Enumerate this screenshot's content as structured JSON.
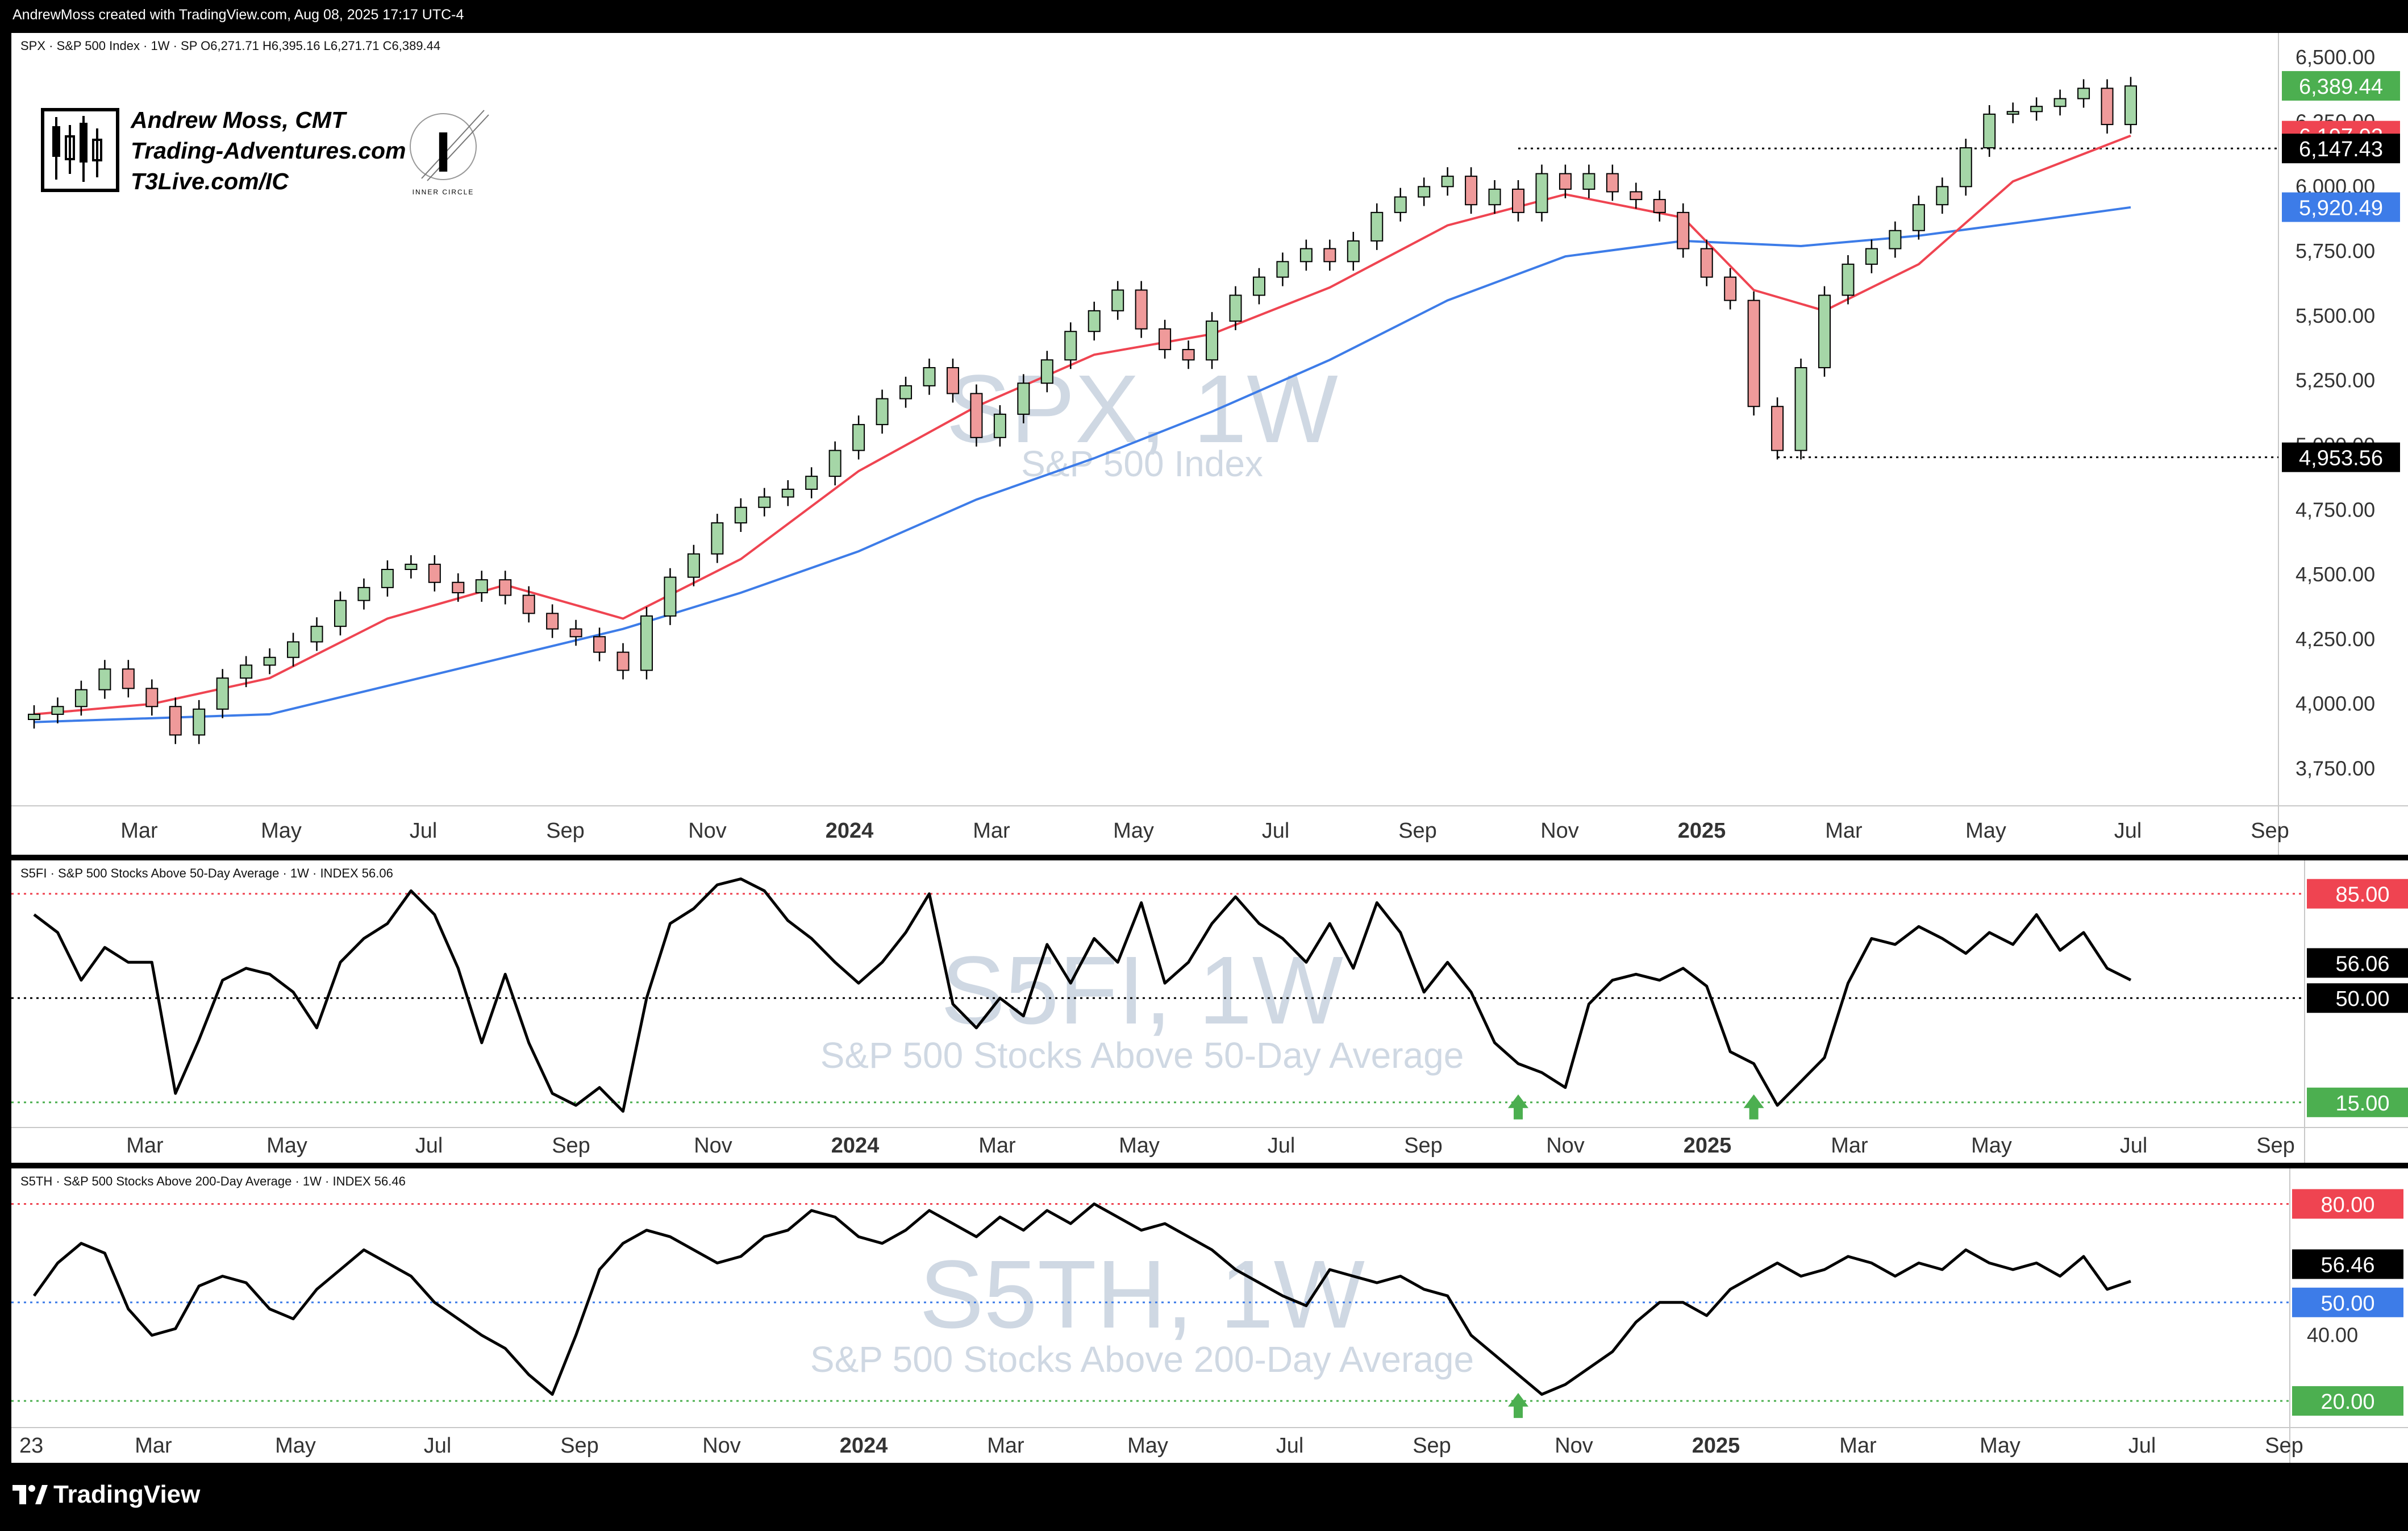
{
  "header": {
    "attribution": "AndrewMoss created with TradingView.com, Aug 08, 2025 17:17 UTC-4"
  },
  "branding": {
    "author_lines": [
      "Andrew Moss, CMT",
      "Trading-Adventures.com",
      "T3Live.com/IC"
    ],
    "inner_circle": "INNER CIRCLE",
    "footer_logo": "TradingView"
  },
  "colors": {
    "bull": "#a5d6a7",
    "bear": "#ef9a9a",
    "candle_edge": "#000000",
    "ema_fast": "#ef4451",
    "ema_slow": "#3d7ce8",
    "green_tag": "#4caf50",
    "red_tag": "#ef4451",
    "blue_tag": "#2962ff"
  },
  "chart_data": [
    {
      "type": "candlestick",
      "legend": "SPX · S&P 500 Index · 1W · SP",
      "ohlc_readout": {
        "O": "O6,271.71",
        "H": "H6,395.16",
        "L": "L6,271.71",
        "C": "C6,389.44"
      },
      "watermark_title": "SPX, 1W",
      "watermark_subtitle": "S&P 500 Index",
      "ylim": [
        3650,
        6550
      ],
      "yticks": [
        "3,750.00",
        "4,000.00",
        "4,250.00",
        "4,500.00",
        "4,750.00",
        "5,000.00",
        "5,250.00",
        "5,500.00",
        "5,750.00",
        "6,000.00",
        "6,250.00",
        "6,500.00"
      ],
      "x_labels": [
        "Mar",
        "May",
        "Jul",
        "Sep",
        "Nov",
        "2024",
        "Mar",
        "May",
        "Jul",
        "Sep",
        "Nov",
        "2025",
        "Mar",
        "May",
        "Jul",
        "Sep"
      ],
      "ohlc_close_points": [
        [
          0,
          3960
        ],
        [
          2,
          3990
        ],
        [
          4,
          4055
        ],
        [
          6,
          4135
        ],
        [
          8,
          4060
        ],
        [
          10,
          3990
        ],
        [
          12,
          3880
        ],
        [
          14,
          3980
        ],
        [
          16,
          4100
        ],
        [
          18,
          4150
        ],
        [
          20,
          4180
        ],
        [
          22,
          4240
        ],
        [
          24,
          4300
        ],
        [
          26,
          4400
        ],
        [
          28,
          4450
        ],
        [
          30,
          4520
        ],
        [
          32,
          4540
        ],
        [
          34,
          4470
        ],
        [
          36,
          4430
        ],
        [
          38,
          4480
        ],
        [
          40,
          4420
        ],
        [
          42,
          4350
        ],
        [
          44,
          4290
        ],
        [
          46,
          4260
        ],
        [
          48,
          4200
        ],
        [
          50,
          4130
        ],
        [
          52,
          4340
        ],
        [
          54,
          4490
        ],
        [
          56,
          4580
        ],
        [
          58,
          4700
        ],
        [
          60,
          4760
        ],
        [
          62,
          4800
        ],
        [
          64,
          4830
        ],
        [
          66,
          4880
        ],
        [
          68,
          4980
        ],
        [
          70,
          5080
        ],
        [
          72,
          5180
        ],
        [
          74,
          5230
        ],
        [
          76,
          5300
        ],
        [
          78,
          5200
        ],
        [
          80,
          5030
        ],
        [
          82,
          5120
        ],
        [
          84,
          5240
        ],
        [
          86,
          5330
        ],
        [
          88,
          5440
        ],
        [
          90,
          5520
        ],
        [
          92,
          5600
        ],
        [
          94,
          5450
        ],
        [
          96,
          5370
        ],
        [
          98,
          5330
        ],
        [
          100,
          5480
        ],
        [
          102,
          5580
        ],
        [
          104,
          5650
        ],
        [
          106,
          5710
        ],
        [
          108,
          5760
        ],
        [
          110,
          5710
        ],
        [
          112,
          5790
        ],
        [
          114,
          5900
        ],
        [
          116,
          5960
        ],
        [
          118,
          6000
        ],
        [
          120,
          6040
        ],
        [
          122,
          5930
        ],
        [
          124,
          5990
        ],
        [
          126,
          5900
        ],
        [
          128,
          6050
        ],
        [
          130,
          5990
        ],
        [
          132,
          6050
        ],
        [
          134,
          5980
        ],
        [
          136,
          5950
        ],
        [
          138,
          5900
        ],
        [
          140,
          5760
        ],
        [
          142,
          5650
        ],
        [
          144,
          5560
        ],
        [
          146,
          5150
        ],
        [
          148,
          4980
        ],
        [
          150,
          5300
        ],
        [
          152,
          5580
        ],
        [
          154,
          5700
        ],
        [
          156,
          5760
        ],
        [
          158,
          5830
        ],
        [
          160,
          5930
        ],
        [
          162,
          6000
        ],
        [
          164,
          6150
        ],
        [
          166,
          6280
        ],
        [
          168,
          6290
        ],
        [
          170,
          6310
        ],
        [
          172,
          6340
        ],
        [
          174,
          6380
        ],
        [
          176,
          6240
        ],
        [
          178,
          6389
        ]
      ],
      "ema_fast_points": [
        [
          0,
          3960
        ],
        [
          10,
          4000
        ],
        [
          20,
          4100
        ],
        [
          30,
          4330
        ],
        [
          40,
          4460
        ],
        [
          50,
          4330
        ],
        [
          60,
          4560
        ],
        [
          70,
          4900
        ],
        [
          80,
          5150
        ],
        [
          90,
          5350
        ],
        [
          100,
          5430
        ],
        [
          110,
          5610
        ],
        [
          120,
          5850
        ],
        [
          130,
          5970
        ],
        [
          140,
          5880
        ],
        [
          146,
          5600
        ],
        [
          152,
          5520
        ],
        [
          160,
          5700
        ],
        [
          168,
          6020
        ],
        [
          178,
          6197
        ]
      ],
      "ema_slow_points": [
        [
          0,
          3930
        ],
        [
          20,
          3960
        ],
        [
          40,
          4180
        ],
        [
          50,
          4290
        ],
        [
          60,
          4430
        ],
        [
          70,
          4590
        ],
        [
          80,
          4790
        ],
        [
          90,
          4950
        ],
        [
          100,
          5130
        ],
        [
          110,
          5330
        ],
        [
          120,
          5560
        ],
        [
          130,
          5730
        ],
        [
          140,
          5790
        ],
        [
          150,
          5770
        ],
        [
          160,
          5810
        ],
        [
          170,
          5870
        ],
        [
          178,
          5920
        ]
      ],
      "horizontal_levels": [
        {
          "label": "6,147.43",
          "value": 6147.43
        },
        {
          "label": "4,953.56",
          "value": 4953.56
        }
      ],
      "price_tags": [
        {
          "label": "6,389.44",
          "value": 6389.44,
          "color": "#4caf50"
        },
        {
          "label": "6,197.02",
          "value": 6197.02,
          "color": "#ef4451"
        },
        {
          "label": "6,147.43",
          "value": 6147.43,
          "color": "#000000"
        },
        {
          "label": "5,920.49",
          "value": 5920.49,
          "color": "#3d7ce8"
        },
        {
          "label": "4,953.56",
          "value": 4953.56,
          "color": "#000000"
        }
      ]
    },
    {
      "type": "line",
      "legend": "S5FI · S&P 500 Stocks Above 50-Day Average · 1W · INDEX",
      "legend_value": "56.06",
      "watermark_title": "S5FI, 1W",
      "watermark_subtitle": "S&P 500 Stocks Above 50-Day Average",
      "ylim": [
        10,
        92
      ],
      "series_points": [
        [
          0,
          78
        ],
        [
          2,
          72
        ],
        [
          4,
          56
        ],
        [
          6,
          67
        ],
        [
          8,
          62
        ],
        [
          10,
          62
        ],
        [
          12,
          18
        ],
        [
          14,
          36
        ],
        [
          16,
          56
        ],
        [
          18,
          60
        ],
        [
          20,
          58
        ],
        [
          22,
          52
        ],
        [
          24,
          40
        ],
        [
          26,
          62
        ],
        [
          28,
          70
        ],
        [
          30,
          75
        ],
        [
          32,
          86
        ],
        [
          34,
          78
        ],
        [
          36,
          60
        ],
        [
          38,
          35
        ],
        [
          40,
          58
        ],
        [
          42,
          35
        ],
        [
          44,
          18
        ],
        [
          46,
          14
        ],
        [
          48,
          20
        ],
        [
          50,
          12
        ],
        [
          52,
          50
        ],
        [
          54,
          75
        ],
        [
          56,
          80
        ],
        [
          58,
          88
        ],
        [
          60,
          90
        ],
        [
          62,
          86
        ],
        [
          64,
          76
        ],
        [
          66,
          70
        ],
        [
          68,
          62
        ],
        [
          70,
          55
        ],
        [
          72,
          62
        ],
        [
          74,
          72
        ],
        [
          76,
          85
        ],
        [
          78,
          48
        ],
        [
          80,
          40
        ],
        [
          82,
          50
        ],
        [
          84,
          44
        ],
        [
          86,
          68
        ],
        [
          88,
          55
        ],
        [
          90,
          70
        ],
        [
          92,
          62
        ],
        [
          94,
          82
        ],
        [
          96,
          55
        ],
        [
          98,
          62
        ],
        [
          100,
          75
        ],
        [
          102,
          84
        ],
        [
          104,
          75
        ],
        [
          106,
          70
        ],
        [
          108,
          62
        ],
        [
          110,
          75
        ],
        [
          112,
          60
        ],
        [
          114,
          82
        ],
        [
          116,
          72
        ],
        [
          118,
          52
        ],
        [
          120,
          62
        ],
        [
          122,
          52
        ],
        [
          124,
          35
        ],
        [
          126,
          28
        ],
        [
          128,
          25
        ],
        [
          130,
          20
        ],
        [
          132,
          48
        ],
        [
          134,
          56
        ],
        [
          136,
          58
        ],
        [
          138,
          56
        ],
        [
          140,
          60
        ],
        [
          142,
          54
        ],
        [
          144,
          32
        ],
        [
          146,
          28
        ],
        [
          148,
          14
        ],
        [
          150,
          22
        ],
        [
          152,
          30
        ],
        [
          154,
          55
        ],
        [
          156,
          70
        ],
        [
          158,
          68
        ],
        [
          160,
          74
        ],
        [
          162,
          70
        ],
        [
          164,
          65
        ],
        [
          166,
          72
        ],
        [
          168,
          68
        ],
        [
          170,
          78
        ],
        [
          172,
          66
        ],
        [
          174,
          72
        ],
        [
          176,
          60
        ],
        [
          178,
          56.06
        ]
      ],
      "levels": [
        {
          "label": "85.00",
          "value": 85,
          "color": "#ef4451",
          "style": "dotted"
        },
        {
          "label": "50.00",
          "value": 50,
          "color": "#000000",
          "style": "dotted"
        },
        {
          "label": "15.00",
          "value": 15,
          "color": "#4caf50",
          "style": "dotted"
        }
      ],
      "value_tag": {
        "label": "56.06",
        "value": 56.06
      },
      "signal_arrows": [
        126,
        146
      ],
      "x_labels": [
        "Mar",
        "May",
        "Jul",
        "Sep",
        "Nov",
        "2024",
        "Mar",
        "May",
        "Jul",
        "Sep",
        "Nov",
        "2025",
        "Mar",
        "May",
        "Jul",
        "Sep"
      ]
    },
    {
      "type": "line",
      "legend": "S5TH · S&P 500 Stocks Above 200-Day Average · 1W · INDEX",
      "legend_value": "56.46",
      "watermark_title": "S5TH, 1W",
      "watermark_subtitle": "S&P 500 Stocks Above 200-Day Average",
      "ylim": [
        15,
        87
      ],
      "y_ticks": [
        "40.00"
      ],
      "series_points": [
        [
          0,
          52
        ],
        [
          2,
          62
        ],
        [
          4,
          68
        ],
        [
          6,
          65
        ],
        [
          8,
          48
        ],
        [
          10,
          40
        ],
        [
          12,
          42
        ],
        [
          14,
          55
        ],
        [
          16,
          58
        ],
        [
          18,
          56
        ],
        [
          20,
          48
        ],
        [
          22,
          45
        ],
        [
          24,
          54
        ],
        [
          26,
          60
        ],
        [
          28,
          66
        ],
        [
          30,
          62
        ],
        [
          32,
          58
        ],
        [
          34,
          50
        ],
        [
          36,
          45
        ],
        [
          38,
          40
        ],
        [
          40,
          36
        ],
        [
          42,
          28
        ],
        [
          44,
          22
        ],
        [
          46,
          40
        ],
        [
          48,
          60
        ],
        [
          50,
          68
        ],
        [
          52,
          72
        ],
        [
          54,
          70
        ],
        [
          56,
          66
        ],
        [
          58,
          62
        ],
        [
          60,
          64
        ],
        [
          62,
          70
        ],
        [
          64,
          72
        ],
        [
          66,
          78
        ],
        [
          68,
          76
        ],
        [
          70,
          70
        ],
        [
          72,
          68
        ],
        [
          74,
          72
        ],
        [
          76,
          78
        ],
        [
          78,
          74
        ],
        [
          80,
          70
        ],
        [
          82,
          76
        ],
        [
          84,
          72
        ],
        [
          86,
          78
        ],
        [
          88,
          74
        ],
        [
          90,
          80
        ],
        [
          92,
          76
        ],
        [
          94,
          72
        ],
        [
          96,
          74
        ],
        [
          98,
          70
        ],
        [
          100,
          66
        ],
        [
          102,
          60
        ],
        [
          104,
          56
        ],
        [
          106,
          52
        ],
        [
          108,
          49
        ],
        [
          110,
          60
        ],
        [
          112,
          58
        ],
        [
          114,
          56
        ],
        [
          116,
          58
        ],
        [
          118,
          54
        ],
        [
          120,
          52
        ],
        [
          122,
          40
        ],
        [
          124,
          34
        ],
        [
          126,
          28
        ],
        [
          128,
          22
        ],
        [
          130,
          25
        ],
        [
          132,
          30
        ],
        [
          134,
          35
        ],
        [
          136,
          44
        ],
        [
          138,
          50
        ],
        [
          140,
          50
        ],
        [
          142,
          46
        ],
        [
          144,
          54
        ],
        [
          146,
          58
        ],
        [
          148,
          62
        ],
        [
          150,
          58
        ],
        [
          152,
          60
        ],
        [
          154,
          64
        ],
        [
          156,
          62
        ],
        [
          158,
          58
        ],
        [
          160,
          62
        ],
        [
          162,
          60
        ],
        [
          164,
          66
        ],
        [
          166,
          62
        ],
        [
          168,
          60
        ],
        [
          170,
          62
        ],
        [
          172,
          58
        ],
        [
          174,
          64
        ],
        [
          176,
          54
        ],
        [
          178,
          56.46
        ]
      ],
      "levels": [
        {
          "label": "80.00",
          "value": 80,
          "color": "#ef4451",
          "style": "dotted"
        },
        {
          "label": "50.00",
          "value": 50,
          "color": "#3d7ce8",
          "style": "dotted"
        },
        {
          "label": "20.00",
          "value": 20,
          "color": "#4caf50",
          "style": "dotted"
        }
      ],
      "value_tag": {
        "label": "56.46",
        "value": 56.46
      },
      "signal_arrows": [
        126
      ],
      "x_labels": [
        "23",
        "Mar",
        "May",
        "Jul",
        "Sep",
        "Nov",
        "2024",
        "Mar",
        "May",
        "Jul",
        "Sep",
        "Nov",
        "2025",
        "Mar",
        "May",
        "Jul",
        "Sep"
      ]
    }
  ]
}
